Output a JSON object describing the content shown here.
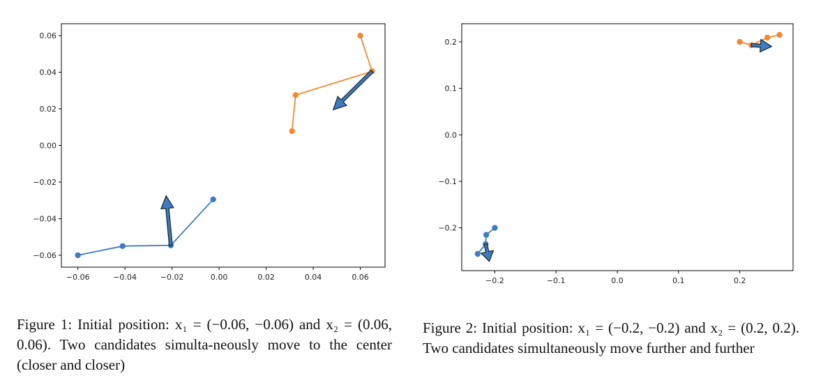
{
  "chart_data": [
    {
      "type": "line",
      "title": "",
      "xlabel": "",
      "ylabel": "",
      "xlim": [
        -0.067,
        0.0705
      ],
      "ylim": [
        -0.0665,
        0.0665
      ],
      "xticks": [
        -0.06,
        -0.04,
        -0.02,
        0.0,
        0.02,
        0.04,
        0.06
      ],
      "xtick_labels": [
        "−0.06",
        "−0.04",
        "−0.02",
        "0.00",
        "0.02",
        "0.04",
        "0.06"
      ],
      "yticks": [
        -0.06,
        -0.04,
        -0.02,
        0.0,
        0.02,
        0.04,
        0.06
      ],
      "ytick_labels": [
        "−0.06",
        "−0.04",
        "−0.02",
        "0.00",
        "0.02",
        "0.04",
        "0.06"
      ],
      "grid": false,
      "series": [
        {
          "color": "#3f7cbd",
          "x": [
            -0.06,
            -0.041,
            -0.0205,
            -0.0025
          ],
          "y": [
            -0.06,
            -0.055,
            -0.0546,
            -0.0295
          ]
        },
        {
          "color": "#f08a32",
          "x": [
            0.06,
            0.065,
            0.0325,
            0.031
          ],
          "y": [
            0.06,
            0.0405,
            0.0275,
            0.0078
          ]
        }
      ],
      "arrows": [
        {
          "color": "#3f7cbd",
          "from": [
            -0.0205,
            -0.0546
          ],
          "to": [
            -0.0225,
            -0.0275
          ]
        },
        {
          "color": "#3f7cbd",
          "from": [
            0.065,
            0.0405
          ],
          "to": [
            0.0485,
            0.0195
          ]
        }
      ]
    },
    {
      "type": "line",
      "title": "",
      "xlabel": "",
      "ylabel": "",
      "xlim": [
        -0.254,
        0.287
      ],
      "ylim": [
        -0.292,
        0.239
      ],
      "xticks": [
        -0.2,
        -0.1,
        0.0,
        0.1,
        0.2
      ],
      "xtick_labels": [
        "−0.2",
        "−0.1",
        "0.0",
        "0.1",
        "0.2"
      ],
      "yticks": [
        -0.2,
        -0.1,
        0.0,
        0.1,
        0.2
      ],
      "ytick_labels": [
        "−0.2",
        "−0.1",
        "0.0",
        "0.1",
        "0.2"
      ],
      "grid": false,
      "series": [
        {
          "color": "#3f7cbd",
          "x": [
            -0.2,
            -0.214,
            -0.215,
            -0.228
          ],
          "y": [
            -0.2,
            -0.215,
            -0.235,
            -0.256
          ]
        },
        {
          "color": "#f08a32",
          "x": [
            0.2,
            0.219,
            0.245,
            0.265
          ],
          "y": [
            0.2,
            0.193,
            0.209,
            0.215
          ]
        }
      ],
      "arrows": [
        {
          "color": "#3f7cbd",
          "from": [
            -0.215,
            -0.235
          ],
          "to": [
            -0.209,
            -0.272
          ]
        },
        {
          "color": "#3f7cbd",
          "from": [
            0.219,
            0.193
          ],
          "to": [
            0.252,
            0.19
          ]
        }
      ]
    }
  ],
  "captions": {
    "figure1": "Figure 1: Initial position: x₁ = (−0.06, −0.06) and x₂ = (0.06, 0.06). Two candidates simulta-neously move to the center (closer and closer)",
    "figure2": "Figure 2: Initial position: x₁ = (−0.2, −0.2) and x₂ = (0.2, 0.2). Two candidates simultaneously move further and further"
  }
}
